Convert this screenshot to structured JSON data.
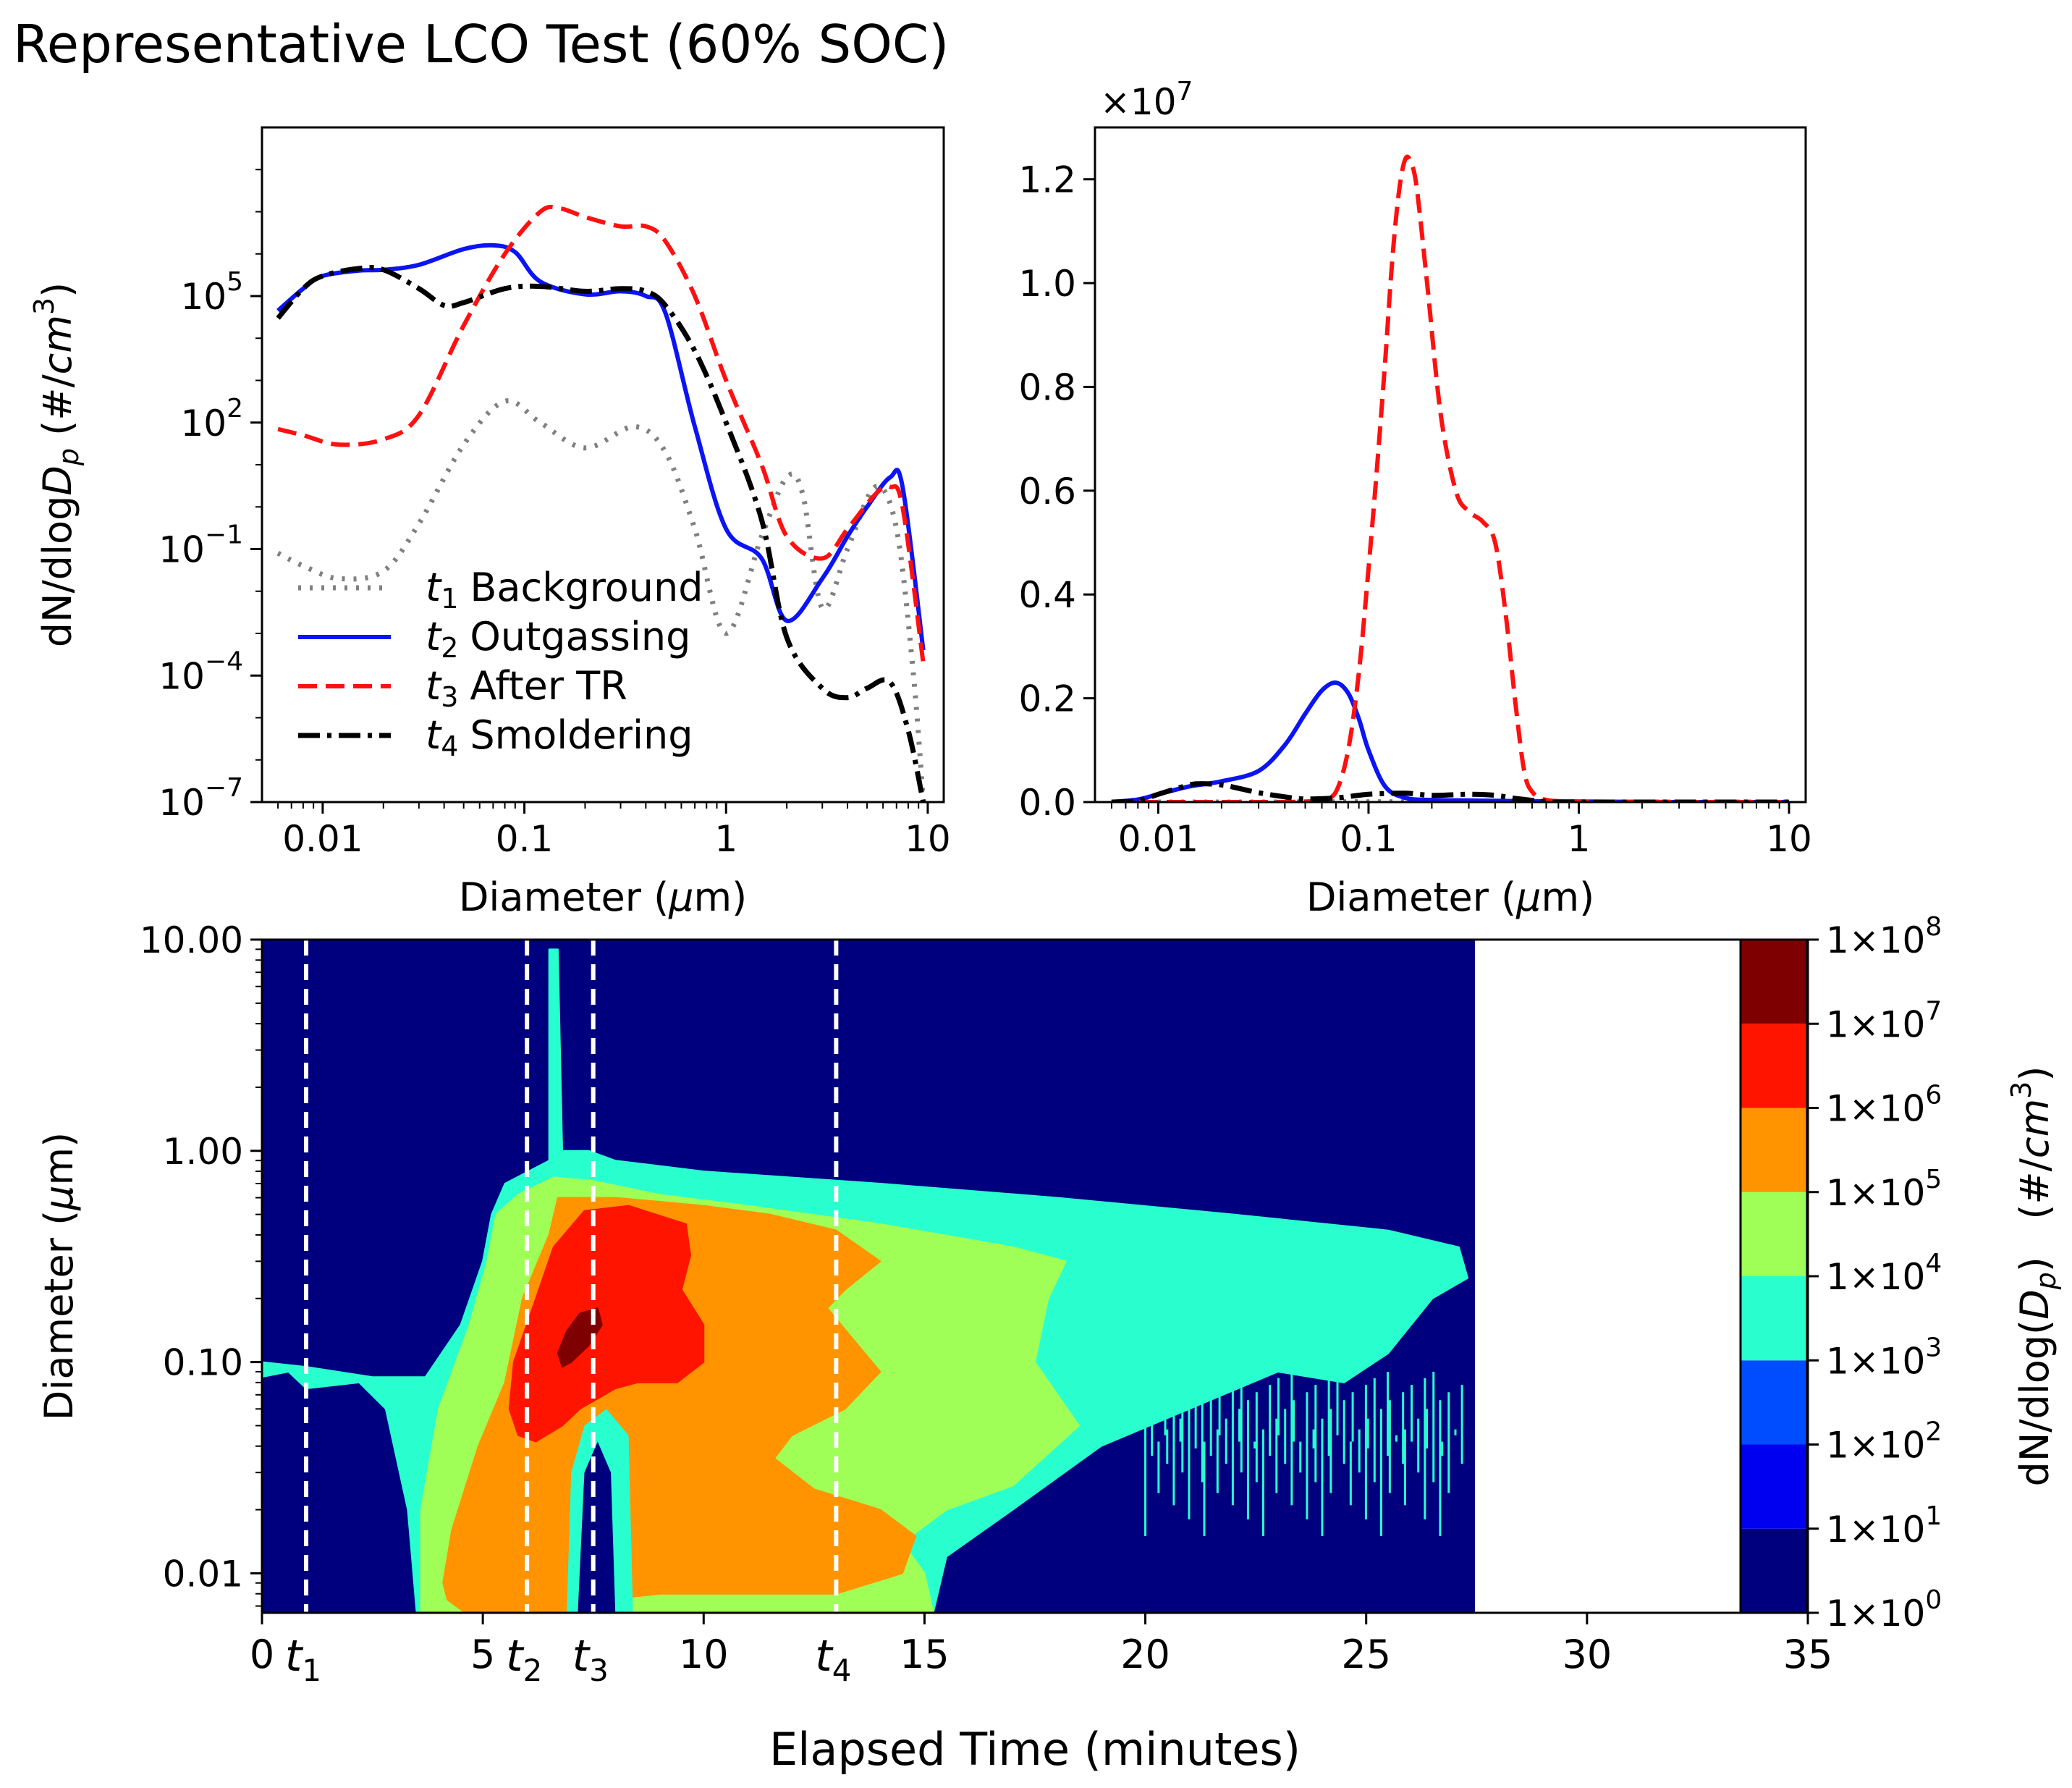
{
  "figure": {
    "title": "Representative LCO Test (60% SOC)"
  },
  "chart_data": [
    {
      "type": "line",
      "panel": "top-left",
      "xscale": "log",
      "yscale": "log",
      "xlim": [
        0.005,
        12
      ],
      "ylim": [
        1e-07,
        1000000000.0
      ],
      "xlabel_pre": "Diameter (",
      "xlabel_sym": "μ",
      "xlabel_post": "m)",
      "ylabel_pre": "dN/dlog",
      "ylabel_sym": "D",
      "ylabel_sub": "p",
      "ylabel_mid": " (#/",
      "ylabel_unit": "cm",
      "ylabel_sup": "3",
      "ylabel_post": ")",
      "xticks": [
        {
          "v": 0.01,
          "label": "0.01"
        },
        {
          "v": 0.1,
          "label": "0.1"
        },
        {
          "v": 1,
          "label": "1"
        },
        {
          "v": 10,
          "label": "10"
        }
      ],
      "yticks": [
        {
          "v": 1e-07,
          "base": "10",
          "exp": "−7"
        },
        {
          "v": 0.0001,
          "base": "10",
          "exp": "−4"
        },
        {
          "v": 0.1,
          "base": "10",
          "exp": "−1"
        },
        {
          "v": 100,
          "base": "10",
          "exp": "2"
        },
        {
          "v": 100000,
          "base": "10",
          "exp": "5"
        }
      ],
      "legend_position": "lower-left",
      "series": [
        {
          "name": "Background",
          "sym": "t",
          "sub": "1",
          "color": "#808080",
          "dash": "4 12",
          "width": 7,
          "x": [
            0.006,
            0.008,
            0.012,
            0.02,
            0.03,
            0.05,
            0.08,
            0.12,
            0.2,
            0.35,
            0.5,
            0.7,
            1.0,
            1.5,
            2.0,
            2.4,
            3.0,
            4.0,
            5.5,
            7.0,
            8.5,
            9.5
          ],
          "y": [
            0.08,
            0.04,
            0.02,
            0.03,
            0.4,
            30,
            320,
            100,
            25,
            80,
            20,
            0.3,
            0.001,
            0.2,
            5,
            2,
            0.004,
            0.1,
            3,
            0.3,
            0.0001,
            1e-07
          ]
        },
        {
          "name": "Outgassing",
          "sym": "t",
          "sub": "2",
          "color": "#0a14f5",
          "dash": "",
          "width": 6,
          "x": [
            0.006,
            0.008,
            0.01,
            0.015,
            0.02,
            0.03,
            0.05,
            0.07,
            0.09,
            0.12,
            0.2,
            0.3,
            0.4,
            0.5,
            0.7,
            1.0,
            1.5,
            2.0,
            3.0,
            4.0,
            5.0,
            6.5,
            7.5,
            9.5
          ],
          "y": [
            45000,
            150000,
            300000,
            400000,
            420000,
            550000,
            1300000,
            1600000,
            1100000,
            220000,
            110000,
            130000,
            100000,
            40000,
            80,
            0.3,
            0.06,
            0.002,
            0.02,
            0.2,
            1,
            5,
            3,
            0.0004
          ]
        },
        {
          "name": "After TR",
          "sym": "t",
          "sub": "3",
          "color": "#ff1010",
          "dash": "26 12",
          "width": 6,
          "x": [
            0.006,
            0.008,
            0.012,
            0.02,
            0.03,
            0.05,
            0.08,
            0.12,
            0.15,
            0.2,
            0.3,
            0.4,
            0.5,
            0.7,
            1.0,
            1.5,
            2.0,
            3.0,
            4.0,
            5.5,
            6.5,
            7.5,
            9.5
          ],
          "y": [
            70,
            50,
            30,
            40,
            150,
            20000,
            1000000,
            10000000,
            12000000,
            7500000,
            4500000,
            4500000,
            2000000,
            100000,
            1000,
            10,
            0.2,
            0.06,
            0.3,
            2,
            3,
            1,
            0.0002
          ]
        },
        {
          "name": "Smoldering",
          "sym": "t",
          "sub": "4",
          "color": "#000000",
          "dash": "30 10 6 10",
          "width": 7,
          "x": [
            0.006,
            0.008,
            0.01,
            0.015,
            0.02,
            0.03,
            0.04,
            0.05,
            0.08,
            0.12,
            0.2,
            0.3,
            0.4,
            0.5,
            0.7,
            1.0,
            1.5,
            2.0,
            3.0,
            4.0,
            5.0,
            6.5,
            8.0,
            9.5
          ],
          "y": [
            30000,
            150000,
            300000,
            450000,
            420000,
            150000,
            60000,
            70000,
            150000,
            170000,
            130000,
            150000,
            130000,
            60000,
            5000,
            100,
            0.5,
            0.0008,
            5e-05,
            3e-05,
            5e-05,
            7e-05,
            5e-06,
            1e-07
          ]
        }
      ]
    },
    {
      "type": "line",
      "panel": "top-right",
      "xscale": "log",
      "yscale": "linear",
      "xlim": [
        0.005,
        12
      ],
      "ylim": [
        0,
        1.3
      ],
      "offset_label": "×10",
      "offset_exp": "7",
      "xlabel_pre": "Diameter (",
      "xlabel_sym": "μ",
      "xlabel_post": "m)",
      "xticks": [
        {
          "v": 0.01,
          "label": "0.01"
        },
        {
          "v": 0.1,
          "label": "0.1"
        },
        {
          "v": 1,
          "label": "1"
        },
        {
          "v": 10,
          "label": "10"
        }
      ],
      "yticks": [
        {
          "v": 0,
          "label": "0.0"
        },
        {
          "v": 0.2,
          "label": "0.2"
        },
        {
          "v": 0.4,
          "label": "0.4"
        },
        {
          "v": 0.6,
          "label": "0.6"
        },
        {
          "v": 0.8,
          "label": "0.8"
        },
        {
          "v": 1.0,
          "label": "1.0"
        },
        {
          "v": 1.2,
          "label": "1.2"
        }
      ],
      "series": [
        {
          "name": "Background",
          "color": "#808080",
          "dash": "4 12",
          "width": 7,
          "x": [
            0.006,
            0.03,
            0.08,
            0.15,
            0.3,
            0.6,
            10
          ],
          "y": [
            0,
            0,
            0.0005,
            0.0005,
            0.0004,
            0,
            0
          ]
        },
        {
          "name": "Outgassing",
          "color": "#0a14f5",
          "dash": "",
          "width": 6,
          "x": [
            0.006,
            0.008,
            0.01,
            0.014,
            0.02,
            0.03,
            0.04,
            0.05,
            0.06,
            0.07,
            0.08,
            0.09,
            0.1,
            0.12,
            0.15,
            0.2,
            0.3,
            0.5,
            1,
            3,
            10
          ],
          "y": [
            0,
            0.005,
            0.015,
            0.03,
            0.04,
            0.06,
            0.11,
            0.17,
            0.215,
            0.23,
            0.21,
            0.16,
            0.1,
            0.03,
            0.008,
            0.004,
            0.003,
            0.002,
            0.001,
            0,
            0
          ]
        },
        {
          "name": "After TR",
          "color": "#ff1010",
          "dash": "26 12",
          "width": 6,
          "x": [
            0.006,
            0.03,
            0.05,
            0.06,
            0.07,
            0.08,
            0.09,
            0.1,
            0.11,
            0.12,
            0.13,
            0.14,
            0.15,
            0.16,
            0.17,
            0.19,
            0.22,
            0.26,
            0.3,
            0.35,
            0.4,
            0.45,
            0.5,
            0.55,
            0.6,
            0.7,
            1,
            3,
            10
          ],
          "y": [
            0,
            0,
            0.001,
            0.005,
            0.02,
            0.1,
            0.25,
            0.45,
            0.65,
            0.85,
            1.05,
            1.18,
            1.24,
            1.23,
            1.18,
            1.0,
            0.75,
            0.6,
            0.56,
            0.54,
            0.5,
            0.36,
            0.19,
            0.06,
            0.02,
            0.004,
            0.001,
            0,
            0
          ]
        },
        {
          "name": "Smoldering",
          "color": "#000000",
          "dash": "30 10 6 10",
          "width": 7,
          "x": [
            0.006,
            0.008,
            0.01,
            0.012,
            0.015,
            0.02,
            0.025,
            0.03,
            0.04,
            0.05,
            0.07,
            0.1,
            0.15,
            0.2,
            0.3,
            0.4,
            0.5,
            0.7,
            1,
            10
          ],
          "y": [
            0,
            0.003,
            0.015,
            0.025,
            0.035,
            0.033,
            0.025,
            0.018,
            0.01,
            0.006,
            0.008,
            0.015,
            0.017,
            0.013,
            0.015,
            0.013,
            0.007,
            0.001,
            0,
            0
          ]
        }
      ]
    },
    {
      "type": "heatmap",
      "panel": "bottom",
      "xlabel": "Elapsed Time (minutes)",
      "ylabel_pre": "Diameter (",
      "ylabel_sym": "μ",
      "ylabel_post": "m)",
      "xlim": [
        0,
        35
      ],
      "ylim": [
        0.0065,
        10
      ],
      "yscale": "log",
      "data_extent_x": [
        0,
        27.5
      ],
      "xticks": [
        {
          "v": 0,
          "label": "0"
        },
        {
          "v": 5,
          "label": "5"
        },
        {
          "v": 10,
          "label": "10"
        },
        {
          "v": 15,
          "label": "15"
        },
        {
          "v": 20,
          "label": "20"
        },
        {
          "v": 25,
          "label": "25"
        },
        {
          "v": 30,
          "label": "30"
        },
        {
          "v": 35,
          "label": "35"
        }
      ],
      "yticks": [
        {
          "v": 0.01,
          "label": "0.01"
        },
        {
          "v": 0.1,
          "label": "0.10"
        },
        {
          "v": 1,
          "label": "1.00"
        },
        {
          "v": 10,
          "label": "10.00"
        }
      ],
      "markers": [
        {
          "t": 1.0,
          "sym": "t",
          "sub": "1"
        },
        {
          "t": 6.0,
          "sym": "t",
          "sub": "2"
        },
        {
          "t": 7.5,
          "sym": "t",
          "sub": "3"
        },
        {
          "t": 13.0,
          "sym": "t",
          "sub": "4"
        }
      ],
      "colorbar": {
        "levels": [
          0,
          1,
          2,
          3,
          4,
          5,
          6,
          7,
          8
        ],
        "colors": [
          "#00007f",
          "#0000f1",
          "#004dff",
          "#29ffce",
          "#a0ff56",
          "#ff9400",
          "#ff1400",
          "#7f0000"
        ],
        "tick_base": "1×10",
        "label_pre": "dN/dlog(",
        "label_sym": "D",
        "label_sub": "p",
        "label_post": ")   (#/",
        "label_unit": "cm",
        "label_sup": "3",
        "label_end": ")"
      }
    }
  ]
}
